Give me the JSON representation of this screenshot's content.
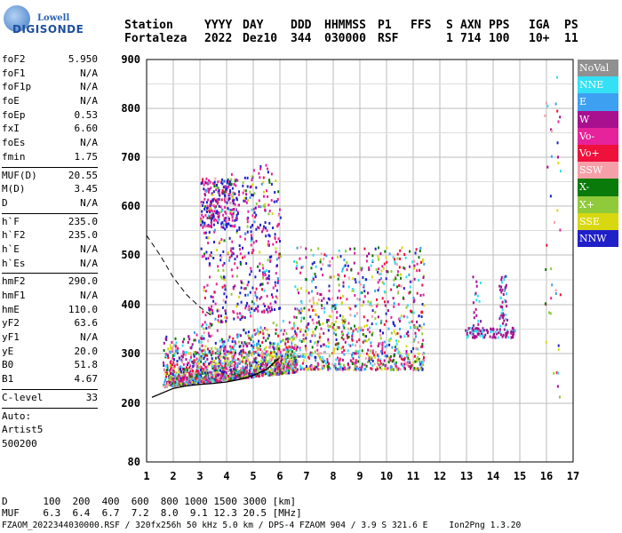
{
  "logo": {
    "line1": "Lowell",
    "line2": "DIGISONDE"
  },
  "header": {
    "labels": [
      "Station",
      "YYYY",
      "DAY",
      "DDD",
      "HHMMSS",
      "P1",
      "FFS",
      "S",
      "AXN",
      "PPS",
      "IGA",
      "PS"
    ],
    "values": [
      "Fortaleza",
      "2022",
      "Dez10",
      "344",
      "030000",
      "RSF",
      "",
      "1",
      "714",
      "100",
      "10+",
      "11"
    ]
  },
  "params": {
    "group1": [
      [
        "foF2",
        "5.950"
      ],
      [
        "foF1",
        "N/A"
      ],
      [
        "foF1p",
        "N/A"
      ],
      [
        "foE",
        "N/A"
      ],
      [
        "foEp",
        "0.53"
      ],
      [
        "fxI",
        "6.60"
      ],
      [
        "foEs",
        "N/A"
      ],
      [
        "fmin",
        "1.75"
      ]
    ],
    "group2": [
      [
        "MUF(D)",
        "20.55"
      ],
      [
        "M(D)",
        "3.45"
      ],
      [
        "D",
        "N/A"
      ]
    ],
    "group3": [
      [
        "h`F",
        "235.0"
      ],
      [
        "h`F2",
        "235.0"
      ],
      [
        "h`E",
        "N/A"
      ],
      [
        "h`Es",
        "N/A"
      ]
    ],
    "group4": [
      [
        "hmF2",
        "290.0"
      ],
      [
        "hmF1",
        "N/A"
      ],
      [
        "hmE",
        "110.0"
      ],
      [
        "yF2",
        "63.6"
      ],
      [
        "yF1",
        "N/A"
      ],
      [
        "yE",
        "20.0"
      ],
      [
        "B0",
        "51.8"
      ],
      [
        "B1",
        "4.67"
      ]
    ],
    "clevel": [
      "C-level",
      "33"
    ],
    "auto": [
      "Auto:",
      "Artist5",
      "500200"
    ]
  },
  "legend": [
    {
      "label": "NoVal",
      "color": "#909090"
    },
    {
      "label": "NNE",
      "color": "#33e0f5"
    },
    {
      "label": "E",
      "color": "#3ea0f0"
    },
    {
      "label": "W",
      "color": "#a8108f"
    },
    {
      "label": "Vo-",
      "color": "#e6239a"
    },
    {
      "label": "Vo+",
      "color": "#f0103c"
    },
    {
      "label": "SSW",
      "color": "#f5a0a8"
    },
    {
      "label": "X-",
      "color": "#0a7a0a"
    },
    {
      "label": "X+",
      "color": "#8fca3a"
    },
    {
      "label": "SSE",
      "color": "#d8d810"
    },
    {
      "label": "NNW",
      "color": "#2020c8"
    }
  ],
  "dmuf": {
    "d_line": "D      100  200  400  600  800 1000 1500 3000 [km]",
    "muf_line": "MUF    6.3  6.4  6.7  7.2  8.0  9.1 12.3 20.5 [MHz]"
  },
  "footer": {
    "left": "FZAOM_2022344030000.RSF / 320fx256h 50 kHz 5.0 km / DPS-4 FZAOM 904 / 3.9 S 321.6 E",
    "right": "Ion2Png 1.3.20"
  },
  "chart_data": {
    "type": "scatter",
    "xlim": [
      1,
      17
    ],
    "ylim": [
      80,
      900
    ],
    "xticks": [
      "1",
      "2",
      "3",
      "4",
      "5",
      "6",
      "7",
      "8",
      "9",
      "10",
      "11",
      "12",
      "13",
      "14",
      "15",
      "16",
      "17"
    ],
    "yticks": [
      "80",
      "200",
      "300",
      "400",
      "500",
      "600",
      "700",
      "800",
      "900"
    ],
    "grid": true,
    "yscale": "custom-height",
    "traces": {
      "oF2_profile": {
        "x": [
          1.2,
          2.0,
          2.5,
          3.0,
          3.5,
          4.0,
          4.5,
          5.0,
          5.5,
          5.95
        ],
        "y": [
          212,
          230,
          235,
          238,
          240,
          243,
          248,
          256,
          268,
          290
        ]
      },
      "oX_dashed": {
        "x": [
          1.0,
          1.5,
          2.0,
          2.5,
          3.0,
          3.5
        ],
        "y": [
          540,
          500,
          455,
          420,
          395,
          375
        ]
      }
    },
    "clusters": [
      {
        "name": "main-F",
        "xmin": 1.6,
        "xmax": 6.6,
        "ymin": 230,
        "ymax": 340
      },
      {
        "name": "upper-spread",
        "xmin": 3.0,
        "xmax": 6.0,
        "ymin": 350,
        "ymax": 650
      },
      {
        "name": "mid-spread",
        "xmin": 6.5,
        "xmax": 11.4,
        "ymin": 270,
        "ymax": 520
      },
      {
        "name": "cluster-13-14",
        "xmin": 12.9,
        "xmax": 14.8,
        "ymin": 330,
        "ymax": 460
      },
      {
        "name": "sparse-16",
        "xmin": 15.8,
        "xmax": 16.6,
        "ymin": 180,
        "ymax": 880
      }
    ]
  }
}
